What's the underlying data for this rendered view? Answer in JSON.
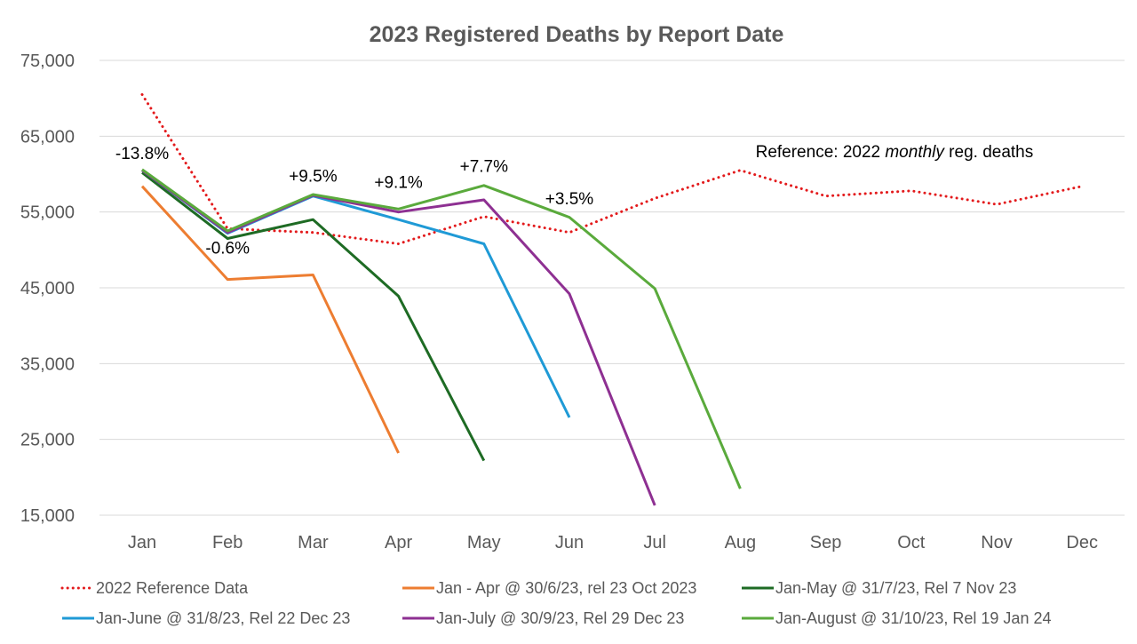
{
  "chart_data": {
    "type": "line",
    "title": "2023 Registered Deaths by Report Date",
    "xlabel": "",
    "ylabel": "",
    "categories": [
      "Jan",
      "Feb",
      "Mar",
      "Apr",
      "May",
      "Jun",
      "Jul",
      "Aug",
      "Sep",
      "Oct",
      "Nov",
      "Dec"
    ],
    "ylim": [
      15000,
      75000
    ],
    "yticks": [
      15000,
      25000,
      35000,
      45000,
      55000,
      65000,
      75000
    ],
    "ytick_labels": [
      "15,000",
      "25,000",
      "35,000",
      "45,000",
      "55,000",
      "65,000",
      "75,000"
    ],
    "grid": true,
    "legend_position": "bottom",
    "series": [
      {
        "name": "2022 Reference Data",
        "color": "#e31a1c",
        "style": "dotted",
        "values": [
          70500,
          52800,
          52300,
          50800,
          54400,
          52300,
          56800,
          60500,
          57100,
          57800,
          56000,
          58400
        ]
      },
      {
        "name": "Jan - Apr @ 30/6/23, rel 23 Oct 2023",
        "color": "#ed7d31",
        "style": "solid",
        "values": [
          58400,
          46100,
          46700,
          23200,
          null,
          null,
          null,
          null,
          null,
          null,
          null,
          null
        ]
      },
      {
        "name": "Jan-May @ 31/7/23, Rel 7 Nov 23",
        "color": "#1e6b24",
        "style": "solid",
        "values": [
          60200,
          51500,
          54000,
          43900,
          22200,
          null,
          null,
          null,
          null,
          null,
          null,
          null
        ]
      },
      {
        "name": "Jan-June @ 31/8/23, Rel 22 Dec 23",
        "color": "#1f9ad6",
        "style": "solid",
        "values": [
          60500,
          52200,
          57100,
          54000,
          50800,
          27900,
          null,
          null,
          null,
          null,
          null,
          null
        ]
      },
      {
        "name": "Jan-July @ 30/9/23, Rel 29 Dec 23",
        "color": "#8e3092",
        "style": "solid",
        "values": [
          60500,
          52300,
          57200,
          55000,
          56600,
          44200,
          16300,
          null,
          null,
          null,
          null,
          null
        ]
      },
      {
        "name": "Jan-August @ 31/10/23, Rel 19 Jan 24",
        "color": "#5aaa3c",
        "style": "solid",
        "values": [
          60600,
          52500,
          57300,
          55400,
          58500,
          54300,
          44900,
          18500,
          null,
          null,
          null,
          null
        ]
      }
    ],
    "annotations": [
      {
        "text": "-13.8%",
        "x": "Jan",
        "y": 62000
      },
      {
        "text": "-0.6%",
        "x": "Feb",
        "y": 49500
      },
      {
        "text": "+9.5%",
        "x": "Mar",
        "y": 59000
      },
      {
        "text": "+9.1%",
        "x": "Apr",
        "y": 58200
      },
      {
        "text": "+7.7%",
        "x": "May",
        "y": 60300
      },
      {
        "text": "+3.5%",
        "x": "Jun",
        "y": 56000
      },
      {
        "text_before": "Reference: 2022 ",
        "text_italic": "monthly",
        "text_after": " reg. deaths",
        "x": "Sep",
        "y": 62200
      }
    ]
  }
}
